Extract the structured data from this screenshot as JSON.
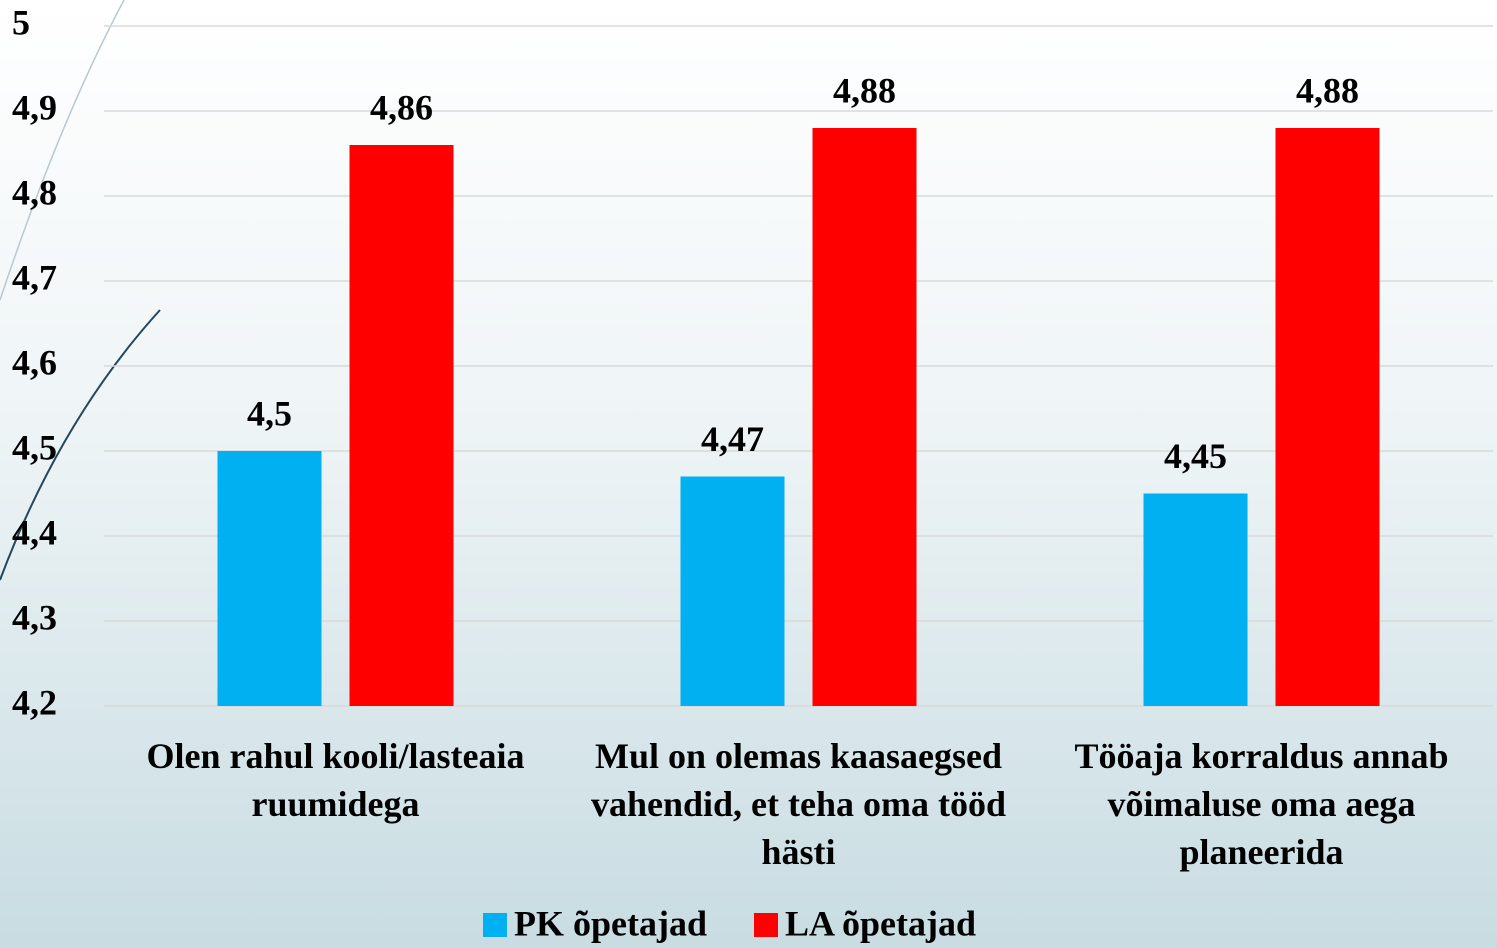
{
  "chart_data": {
    "type": "bar",
    "categories": [
      "Olen rahul kooli/lasteaia ruumidega",
      "Mul on olemas kaasaegsed vahendid, et teha oma tööd hästi",
      "Tööaja korraldus annab võimaluse oma aega planeerida"
    ],
    "series": [
      {
        "name": "PK õpetajad",
        "color": "#00b0f0",
        "values": [
          4.5,
          4.47,
          4.45
        ],
        "value_labels": [
          "4,5",
          "4,47",
          "4,45"
        ]
      },
      {
        "name": "LA õpetajad",
        "color": "#ff0000",
        "values": [
          4.86,
          4.88,
          4.88
        ],
        "value_labels": [
          "4,86",
          "4,88",
          "4,88"
        ]
      }
    ],
    "ylim": [
      4.2,
      5
    ],
    "yticks": [
      {
        "value": 4.2,
        "label": "4,2"
      },
      {
        "value": 4.3,
        "label": "4,3"
      },
      {
        "value": 4.4,
        "label": "4,4"
      },
      {
        "value": 4.5,
        "label": "4,5"
      },
      {
        "value": 4.6,
        "label": "4,6"
      },
      {
        "value": 4.7,
        "label": "4,7"
      },
      {
        "value": 4.8,
        "label": "4,8"
      },
      {
        "value": 4.9,
        "label": "4,9"
      },
      5
    ],
    "grid": true,
    "legend": "bottom"
  }
}
